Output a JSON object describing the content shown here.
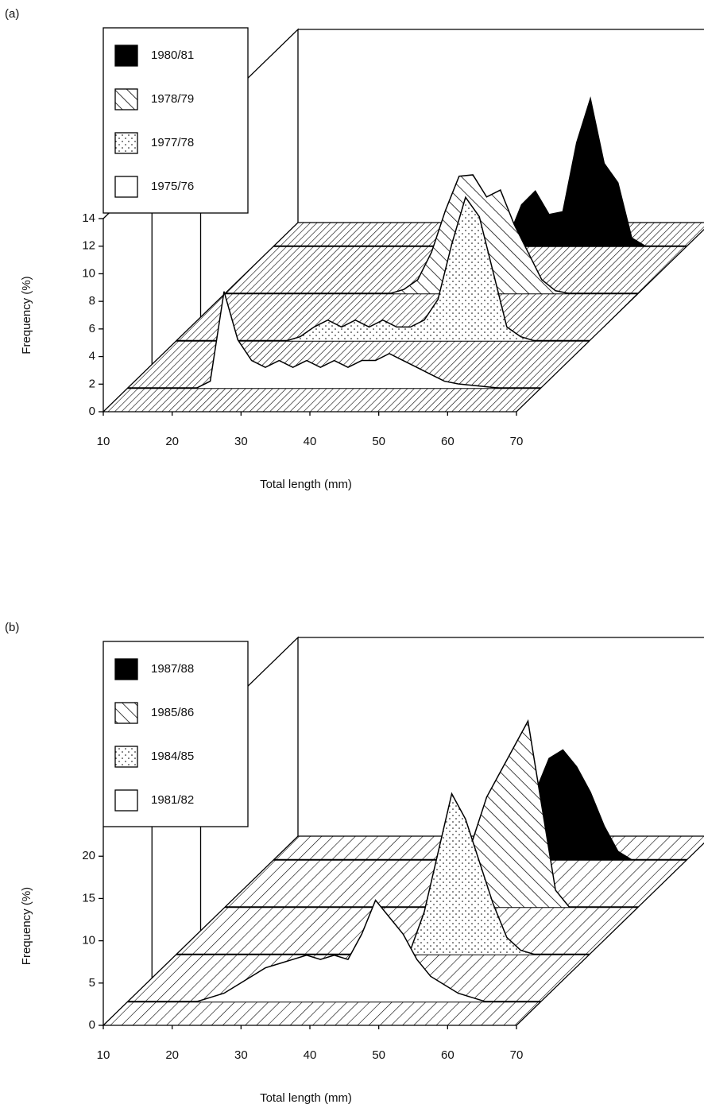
{
  "chart_data": [
    {
      "type": "ribbon3d",
      "label": "(a)",
      "xlabel": "Total length (mm)",
      "ylabel": "Frequency (%)",
      "x": [
        10,
        12,
        14,
        16,
        18,
        20,
        22,
        24,
        26,
        28,
        30,
        32,
        34,
        36,
        38,
        40,
        42,
        44,
        46,
        48,
        50,
        52,
        54,
        56,
        58,
        60,
        62,
        64,
        66,
        68,
        70
      ],
      "xlim": [
        10,
        70
      ],
      "xticks": [
        10,
        20,
        30,
        40,
        50,
        60,
        70
      ],
      "ylim": [
        0,
        14
      ],
      "yticks": [
        0,
        2,
        4,
        6,
        8,
        10,
        12,
        14
      ],
      "series": [
        {
          "name": "1980/81",
          "pattern": "solid",
          "values": [
            0,
            0,
            0,
            0,
            0,
            0,
            0,
            0,
            0,
            0,
            0,
            0,
            0,
            0,
            0,
            0,
            0,
            0.5,
            3,
            4,
            2.3,
            2.5,
            7.5,
            10.7,
            6,
            4.6,
            0.6,
            0,
            0,
            0,
            0
          ]
        },
        {
          "name": "1978/79",
          "pattern": "hatch",
          "values": [
            0,
            0,
            0,
            0,
            0,
            0,
            0,
            0,
            0,
            0,
            0,
            0,
            0,
            0.3,
            1,
            3,
            6,
            8.5,
            8.6,
            7,
            7.5,
            5,
            3,
            1,
            0.2,
            0,
            0,
            0,
            0,
            0,
            0
          ]
        },
        {
          "name": "1977/78",
          "pattern": "dots",
          "values": [
            0,
            0,
            0,
            0,
            0,
            0,
            0,
            0,
            0,
            0.3,
            1,
            1.5,
            1,
            1.5,
            1,
            1.5,
            1,
            1,
            1.5,
            3,
            7,
            10.4,
            9,
            5,
            1,
            0.3,
            0,
            0,
            0,
            0,
            0
          ]
        },
        {
          "name": "1975/76",
          "pattern": "none",
          "values": [
            0,
            0,
            0,
            0,
            0,
            0,
            0.5,
            7,
            3.5,
            2,
            1.5,
            2,
            1.5,
            2,
            1.5,
            2,
            1.5,
            2,
            2,
            2.5,
            2,
            1.5,
            1,
            0.5,
            0.3,
            0.2,
            0.1,
            0,
            0,
            0,
            0
          ]
        }
      ]
    },
    {
      "type": "ribbon3d",
      "label": "(b)",
      "xlabel": "Total length (mm)",
      "ylabel": "Frequency (%)",
      "x": [
        10,
        12,
        14,
        16,
        18,
        20,
        22,
        24,
        26,
        28,
        30,
        32,
        34,
        36,
        38,
        40,
        42,
        44,
        46,
        48,
        50,
        52,
        54,
        56,
        58,
        60,
        62,
        64,
        66,
        68,
        70
      ],
      "xlim": [
        10,
        70
      ],
      "xticks": [
        10,
        20,
        30,
        40,
        50,
        60,
        70
      ],
      "ylim": [
        0,
        23.5
      ],
      "yticks": [
        0,
        5,
        10,
        15,
        20
      ],
      "series": [
        {
          "name": "1987/88",
          "pattern": "solid",
          "values": [
            0,
            0,
            0,
            0,
            0,
            0,
            0,
            0,
            0,
            0,
            0,
            0,
            0,
            0,
            0,
            0,
            0,
            0.5,
            3,
            8,
            12,
            13,
            11,
            8,
            4,
            1,
            0,
            0,
            0,
            0,
            0
          ]
        },
        {
          "name": "1985/86",
          "pattern": "hatch",
          "values": [
            0,
            0,
            0,
            0,
            0,
            0,
            0,
            0,
            0,
            0,
            0,
            0,
            0,
            0,
            0,
            0,
            0.5,
            3,
            8,
            13,
            16,
            19,
            22,
            12,
            2,
            0,
            0,
            0,
            0,
            0,
            0
          ]
        },
        {
          "name": "1984/85",
          "pattern": "dots",
          "values": [
            0,
            0,
            0,
            0,
            0,
            0,
            0,
            0,
            0,
            0,
            0,
            0,
            0,
            0,
            0,
            0,
            0,
            0.5,
            5,
            12,
            19,
            16,
            11,
            6,
            2,
            0.5,
            0,
            0,
            0,
            0,
            0
          ]
        },
        {
          "name": "1981/82",
          "pattern": "none",
          "values": [
            0,
            0,
            0,
            0,
            0,
            0,
            0.5,
            1,
            2,
            3,
            4,
            4.5,
            5,
            5.5,
            5,
            5.5,
            5,
            8,
            12,
            10,
            8,
            5,
            3,
            2,
            1,
            0.5,
            0,
            0,
            0,
            0,
            0
          ]
        }
      ]
    }
  ]
}
